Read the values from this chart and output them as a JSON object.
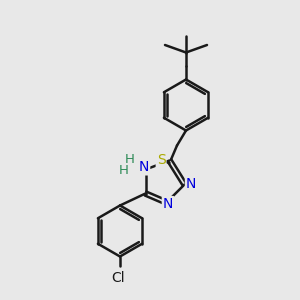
{
  "background_color": "#e8e8e8",
  "bond_color": "#1a1a1a",
  "bond_width": 1.8,
  "atom_colors": {
    "N": "#0000dd",
    "S": "#aaaa00",
    "Cl": "#1a1a1a",
    "NH_color": "#2e8b57",
    "C": "#1a1a1a"
  },
  "figsize": [
    3.0,
    3.0
  ],
  "dpi": 100
}
